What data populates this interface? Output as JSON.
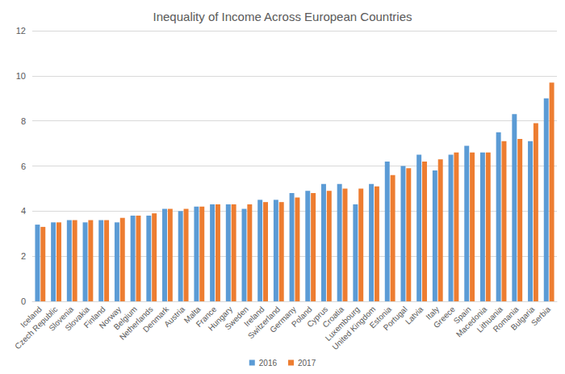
{
  "chart_data": {
    "type": "bar",
    "title": "Inequality of Income Across European Countries",
    "categories": [
      "Iceland",
      "Czech Republic",
      "Slovenia",
      "Slovakia",
      "Finland",
      "Norway",
      "Belgium",
      "Netherlands",
      "Denmark",
      "Austria",
      "Malta",
      "France",
      "Hungary",
      "Sweden",
      "Ireland",
      "Switzerland",
      "Germany",
      "Poland",
      "Cyprus",
      "Croatia",
      "Luxembourg",
      "United Kingdom",
      "Estonia",
      "Portugal",
      "Latvia",
      "Italy",
      "Greece",
      "Spain",
      "Macedonia",
      "Lithuania",
      "Romania",
      "Bulgaria",
      "Serbia"
    ],
    "series": [
      {
        "name": "2016",
        "color": "#5b9bd5",
        "values": [
          3.4,
          3.5,
          3.6,
          3.5,
          3.6,
          3.5,
          3.8,
          3.8,
          4.1,
          4.0,
          4.2,
          4.3,
          4.3,
          4.1,
          4.5,
          4.5,
          4.8,
          4.9,
          5.2,
          5.2,
          4.3,
          5.2,
          6.2,
          6.0,
          6.5,
          5.8,
          6.5,
          6.9,
          6.6,
          7.5,
          8.3,
          7.1,
          9.0
        ]
      },
      {
        "name": "2017",
        "color": "#ed7d31",
        "values": [
          3.3,
          3.5,
          3.6,
          3.6,
          3.6,
          3.7,
          3.8,
          3.9,
          4.1,
          4.1,
          4.2,
          4.3,
          4.3,
          4.3,
          4.4,
          4.4,
          4.6,
          4.8,
          4.9,
          5.0,
          5.0,
          5.1,
          5.6,
          5.9,
          6.2,
          6.3,
          6.6,
          6.6,
          6.6,
          7.1,
          7.2,
          7.9,
          9.7
        ]
      }
    ],
    "ylim": [
      0,
      12
    ],
    "yticks": [
      0,
      2,
      4,
      6,
      8,
      10,
      12
    ],
    "grid": true,
    "legend": "bottom"
  }
}
